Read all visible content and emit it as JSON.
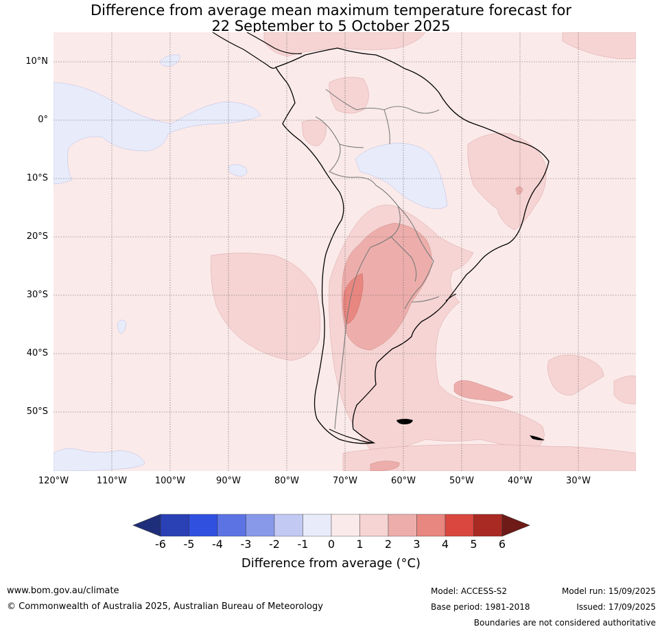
{
  "title_line1": "Difference from average mean maximum temperature forecast for",
  "title_line2": "22 September to 5 October 2025",
  "lat_ticks": [
    "10°N",
    "0°",
    "10°S",
    "20°S",
    "30°S",
    "40°S",
    "50°S"
  ],
  "lon_ticks": [
    "120°W",
    "110°W",
    "100°W",
    "90°W",
    "80°W",
    "70°W",
    "60°W",
    "50°W",
    "40°W",
    "30°W"
  ],
  "colorbar": {
    "labels": [
      "-6",
      "-5",
      "-4",
      "-3",
      "-2",
      "-1",
      "0",
      "1",
      "2",
      "3",
      "4",
      "5",
      "6"
    ],
    "colors": [
      "#1f2e7a",
      "#2a40b5",
      "#3050e0",
      "#5c73e4",
      "#8899ea",
      "#c2c9f3",
      "#e8ebfa",
      "#fbeaea",
      "#f5d4d3",
      "#edaeab",
      "#e88680",
      "#d9473f",
      "#a92a23",
      "#6e1a17"
    ],
    "title": "Difference from average ($^\\circ$C)",
    "title_display": "Difference from average (°C)"
  },
  "footer": {
    "website": "www.bom.gov.au/climate",
    "copyright": "© Commonwealth of Australia 2025, Australian Bureau of Meteorology",
    "model": "Model: ACCESS-S2",
    "base_period": "Base period: 1981-2018",
    "model_run": "Model run: 15/09/2025",
    "issued": "Issued: 17/09/2025",
    "disclaimer": "Boundaries are not considered authoritative"
  }
}
